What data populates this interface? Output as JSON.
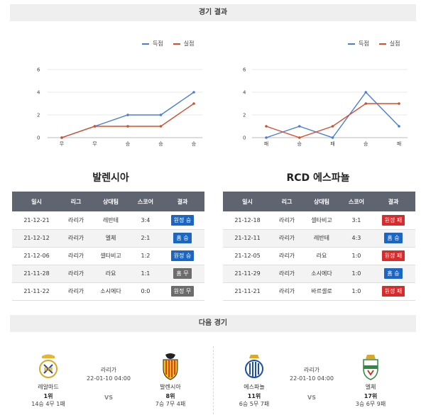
{
  "headers": {
    "results": "경기 결과",
    "next": "다음 경기"
  },
  "legend": {
    "scored": "득점",
    "conceded": "실점"
  },
  "colors": {
    "scored": "#4a7fd4",
    "conceded": "#d2502e",
    "header_bg": "#5e6470"
  },
  "charts": [
    {
      "type": "line",
      "categories": [
        "무",
        "무",
        "승",
        "승",
        "승"
      ],
      "ylim": [
        0,
        6
      ],
      "yticks": [
        0,
        2,
        4,
        6
      ],
      "series": [
        {
          "name": "득점",
          "values": [
            0,
            1,
            2,
            2,
            4
          ]
        },
        {
          "name": "실점",
          "values": [
            0,
            1,
            1,
            1,
            3
          ]
        }
      ]
    },
    {
      "type": "line",
      "categories": [
        "패",
        "승",
        "패",
        "승",
        "패"
      ],
      "ylim": [
        0,
        6
      ],
      "yticks": [
        0,
        2,
        4,
        6
      ],
      "series": [
        {
          "name": "득점",
          "values": [
            0,
            1,
            0,
            4,
            1
          ]
        },
        {
          "name": "실점",
          "values": [
            1,
            0,
            1,
            3,
            3
          ]
        }
      ]
    }
  ],
  "table_headers": [
    "일시",
    "리그",
    "상대팀",
    "스코어",
    "결과"
  ],
  "teams": [
    {
      "name": "발렌시아",
      "rows": [
        {
          "date": "21-12-21",
          "league": "라리가",
          "opp": "레반테",
          "score": "3:4",
          "result": "원정 승",
          "color": "blue"
        },
        {
          "date": "21-12-12",
          "league": "라리가",
          "opp": "엘체",
          "score": "2:1",
          "result": "홈 승",
          "color": "blue"
        },
        {
          "date": "21-12-06",
          "league": "라리가",
          "opp": "셀타비고",
          "score": "1:2",
          "result": "원정 승",
          "color": "blue"
        },
        {
          "date": "21-11-28",
          "league": "라리가",
          "opp": "라요",
          "score": "1:1",
          "result": "홈 무",
          "color": "gray"
        },
        {
          "date": "21-11-22",
          "league": "라리가",
          "opp": "소시에다",
          "score": "0:0",
          "result": "원정 무",
          "color": "gray"
        }
      ]
    },
    {
      "name": "RCD 에스파뇰",
      "rows": [
        {
          "date": "21-12-18",
          "league": "라리가",
          "opp": "셀타비고",
          "score": "3:1",
          "result": "원정 패",
          "color": "red"
        },
        {
          "date": "21-12-11",
          "league": "라리가",
          "opp": "레반테",
          "score": "4:3",
          "result": "홈 승",
          "color": "blue"
        },
        {
          "date": "21-12-05",
          "league": "라리가",
          "opp": "라요",
          "score": "1:0",
          "result": "원정 패",
          "color": "red"
        },
        {
          "date": "21-11-29",
          "league": "라리가",
          "opp": "소시에다",
          "score": "1:0",
          "result": "홈 승",
          "color": "blue"
        },
        {
          "date": "21-11-21",
          "league": "라리가",
          "opp": "바르셀로",
          "score": "1:0",
          "result": "원정 패",
          "color": "red"
        }
      ]
    }
  ],
  "next_matches": [
    {
      "league": "라리가",
      "datetime": "22-01-10 04:00",
      "vs": "VS",
      "home": {
        "name": "레알마드",
        "rank": "1위",
        "record": "14승 4무 1패",
        "crest": "real-madrid-crest"
      },
      "away": {
        "name": "발렌시아",
        "rank": "8위",
        "record": "7승 7무 4패",
        "crest": "valencia-crest"
      }
    },
    {
      "league": "라리가",
      "datetime": "22-01-10 04:00",
      "vs": "VS",
      "home": {
        "name": "에스파뇰",
        "rank": "11위",
        "record": "6승 5무 7패",
        "crest": "espanyol-crest"
      },
      "away": {
        "name": "엘체",
        "rank": "17위",
        "record": "3승 6무 9패",
        "crest": "elche-crest"
      }
    }
  ]
}
